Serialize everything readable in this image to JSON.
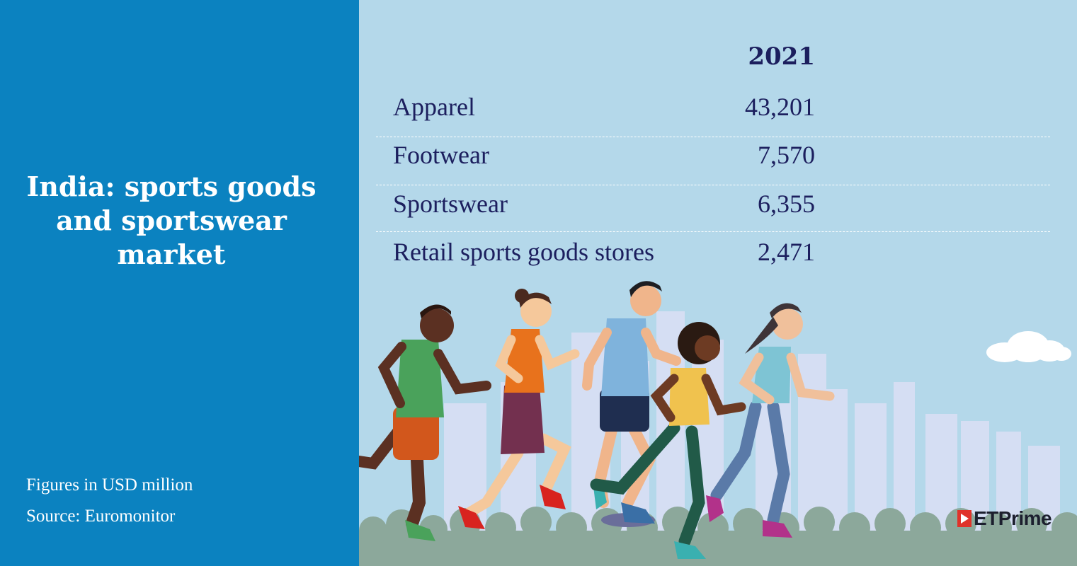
{
  "title": "India: sports goods and sportswear market",
  "notes": {
    "units": "Figures in USD million",
    "source": "Source: Euromonitor"
  },
  "brand": {
    "logo_text": "ETPrime",
    "logo_color": "#e0322a"
  },
  "colors": {
    "left_panel": "#0b82c0",
    "right_panel": "#b4d8ea",
    "text_dark": "#1c1f5e"
  },
  "chart_data": {
    "type": "table",
    "column_header": "2021",
    "rows": [
      {
        "category": "Apparel",
        "value": "43,201"
      },
      {
        "category": "Footwear",
        "value": "7,570"
      },
      {
        "category": "Sportswear",
        "value": "6,355"
      },
      {
        "category": "Retail sports goods stores",
        "value": "2,471"
      }
    ]
  }
}
